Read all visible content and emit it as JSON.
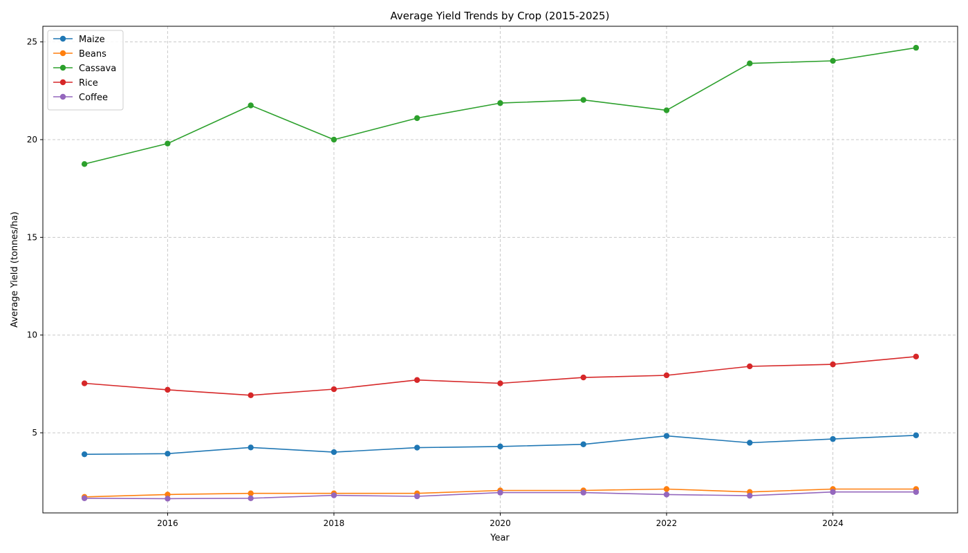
{
  "chart_data": {
    "type": "line",
    "title": "Average Yield Trends by Crop (2015-2025)",
    "xlabel": "Year",
    "ylabel": "Average Yield (tonnes/ha)",
    "x": [
      2015,
      2016,
      2017,
      2018,
      2019,
      2020,
      2021,
      2022,
      2023,
      2024,
      2025
    ],
    "xlim": [
      2014.5,
      2025.5
    ],
    "ylim": [
      0.9,
      25.8
    ],
    "xticks": [
      "2016",
      "2018",
      "2020",
      "2022",
      "2024"
    ],
    "yticks": [
      "5",
      "10",
      "15",
      "20",
      "25"
    ],
    "grid": true,
    "legend_position": "top-left",
    "series": [
      {
        "name": "Maize",
        "color": "#1f77b4",
        "values": [
          3.9,
          3.93,
          4.25,
          4.01,
          4.24,
          4.3,
          4.41,
          4.84,
          4.49,
          4.68,
          4.87
        ]
      },
      {
        "name": "Beans",
        "color": "#ff7f0e",
        "values": [
          1.72,
          1.84,
          1.9,
          1.9,
          1.9,
          2.05,
          2.05,
          2.12,
          1.97,
          2.12,
          2.12
        ]
      },
      {
        "name": "Cassava",
        "color": "#2ca02c",
        "values": [
          18.75,
          19.8,
          21.75,
          20.0,
          21.1,
          21.87,
          22.03,
          21.5,
          23.9,
          24.03,
          24.7
        ]
      },
      {
        "name": "Rice",
        "color": "#d62728",
        "values": [
          7.53,
          7.2,
          6.92,
          7.23,
          7.7,
          7.53,
          7.83,
          7.94,
          8.4,
          8.5,
          8.9
        ]
      },
      {
        "name": "Coffee",
        "color": "#9467bd",
        "values": [
          1.65,
          1.63,
          1.65,
          1.8,
          1.75,
          1.94,
          1.94,
          1.84,
          1.78,
          1.97,
          1.97
        ]
      }
    ]
  }
}
